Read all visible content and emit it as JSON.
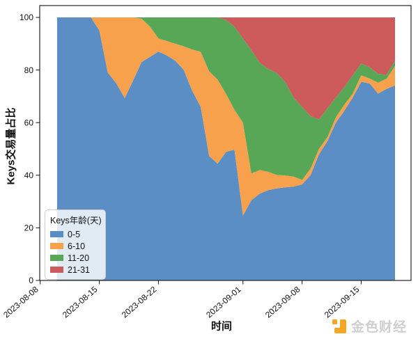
{
  "figure": {
    "background": "#ffffff",
    "axis_color": "#262626",
    "tick_label_color": "#111111"
  },
  "axes": {
    "y_label": "Keys交易量占比",
    "x_label": "时间",
    "y_ticks": [
      "0",
      "20",
      "40",
      "60",
      "80",
      "100"
    ],
    "y_tick_values": [
      0,
      20,
      40,
      60,
      80,
      100
    ],
    "x_ticks": [
      {
        "label": "2023-08-08",
        "day": -2
      },
      {
        "label": "2023-08-15",
        "day": 5
      },
      {
        "label": "2023-08-22",
        "day": 12
      },
      {
        "label": "2023-09-01",
        "day": 22
      },
      {
        "label": "2023-09-08",
        "day": 29
      },
      {
        "label": "2023-09-15",
        "day": 36
      }
    ]
  },
  "legend": {
    "title": "Keys年龄(天)",
    "entries": [
      {
        "label": "0-5",
        "color": "#5a8ec4"
      },
      {
        "label": "6-10",
        "color": "#f8a14c"
      },
      {
        "label": "11-20",
        "color": "#57a757"
      },
      {
        "label": "21-31",
        "color": "#cd5b5b"
      }
    ]
  },
  "watermark": {
    "text": "金色财经",
    "text_color": "#cfcfcf",
    "logo_color": "#f5a623"
  },
  "chart_data": {
    "type": "area",
    "stacked": true,
    "normalized_to": 100,
    "title": "",
    "xlabel": "时间",
    "ylabel": "Keys交易量占比",
    "ylim": [
      0,
      104.5
    ],
    "xlim_days": [
      -2.06,
      41.9
    ],
    "grid": false,
    "legend_position": "lower left",
    "dates": [
      "2023-08-10",
      "2023-08-11",
      "2023-08-12",
      "2023-08-13",
      "2023-08-14",
      "2023-08-15",
      "2023-08-16",
      "2023-08-17",
      "2023-08-18",
      "2023-08-19",
      "2023-08-20",
      "2023-08-21",
      "2023-08-22",
      "2023-08-23",
      "2023-08-24",
      "2023-08-25",
      "2023-08-26",
      "2023-08-27",
      "2023-08-28",
      "2023-08-29",
      "2023-08-30",
      "2023-08-31",
      "2023-09-01",
      "2023-09-02",
      "2023-09-03",
      "2023-09-04",
      "2023-09-05",
      "2023-09-06",
      "2023-09-07",
      "2023-09-08",
      "2023-09-09",
      "2023-09-10",
      "2023-09-11",
      "2023-09-12",
      "2023-09-13",
      "2023-09-14",
      "2023-09-15",
      "2023-09-16",
      "2023-09-17",
      "2023-09-18",
      "2023-09-19"
    ],
    "series": [
      {
        "name": "0-5",
        "color": "#5a8ec4",
        "values": [
          100,
          100,
          100,
          100,
          100,
          95,
          79,
          75,
          69.3,
          76,
          83,
          85,
          87,
          85.5,
          83.5,
          80,
          72,
          66,
          47.3,
          44.4,
          48.9,
          49.7,
          24.6,
          30.5,
          33,
          34.3,
          35,
          35.4,
          35.7,
          36.5,
          40,
          47.9,
          53,
          60,
          64.5,
          69.5,
          75.5,
          74.9,
          71,
          72.8,
          74.1
        ]
      },
      {
        "name": "6-10",
        "color": "#f8a14c",
        "values": [
          0,
          0,
          0,
          0,
          0,
          5,
          21,
          25,
          30.7,
          24,
          16.5,
          11.5,
          5,
          5.5,
          6.5,
          9,
          15.8,
          20.9,
          32.2,
          32,
          22,
          15.2,
          35.4,
          10.2,
          9,
          7,
          5.1,
          4.5,
          3.8,
          1.7,
          2.5,
          2.1,
          1.5,
          2,
          2.3,
          1.5,
          2.5,
          1.9,
          4.2,
          3.9,
          7.4
        ]
      },
      {
        "name": "11-20",
        "color": "#57a757",
        "values": [
          0,
          0,
          0,
          0,
          0,
          0,
          0,
          0,
          0,
          0,
          0.5,
          3.5,
          8,
          9,
          10,
          11,
          12.2,
          13.1,
          20.5,
          23.6,
          28.1,
          31.6,
          32,
          46.8,
          40.7,
          39.1,
          38.8,
          35.6,
          30,
          27.8,
          20,
          11.2,
          11,
          7.5,
          6.7,
          7,
          4.5,
          4.2,
          3.4,
          1.4,
          2.1
        ]
      },
      {
        "name": "21-31",
        "color": "#cd5b5b",
        "values": [
          0,
          0,
          0,
          0,
          0,
          0,
          0,
          0,
          0,
          0,
          0,
          0,
          0,
          0,
          0,
          0,
          0,
          0,
          0,
          0,
          1,
          3.5,
          8,
          12.5,
          17.3,
          19.6,
          21.1,
          24.5,
          30.5,
          34,
          37.5,
          38.8,
          34.5,
          30.5,
          26.5,
          22,
          17.5,
          19,
          21.4,
          21.9,
          16.4
        ]
      }
    ]
  }
}
